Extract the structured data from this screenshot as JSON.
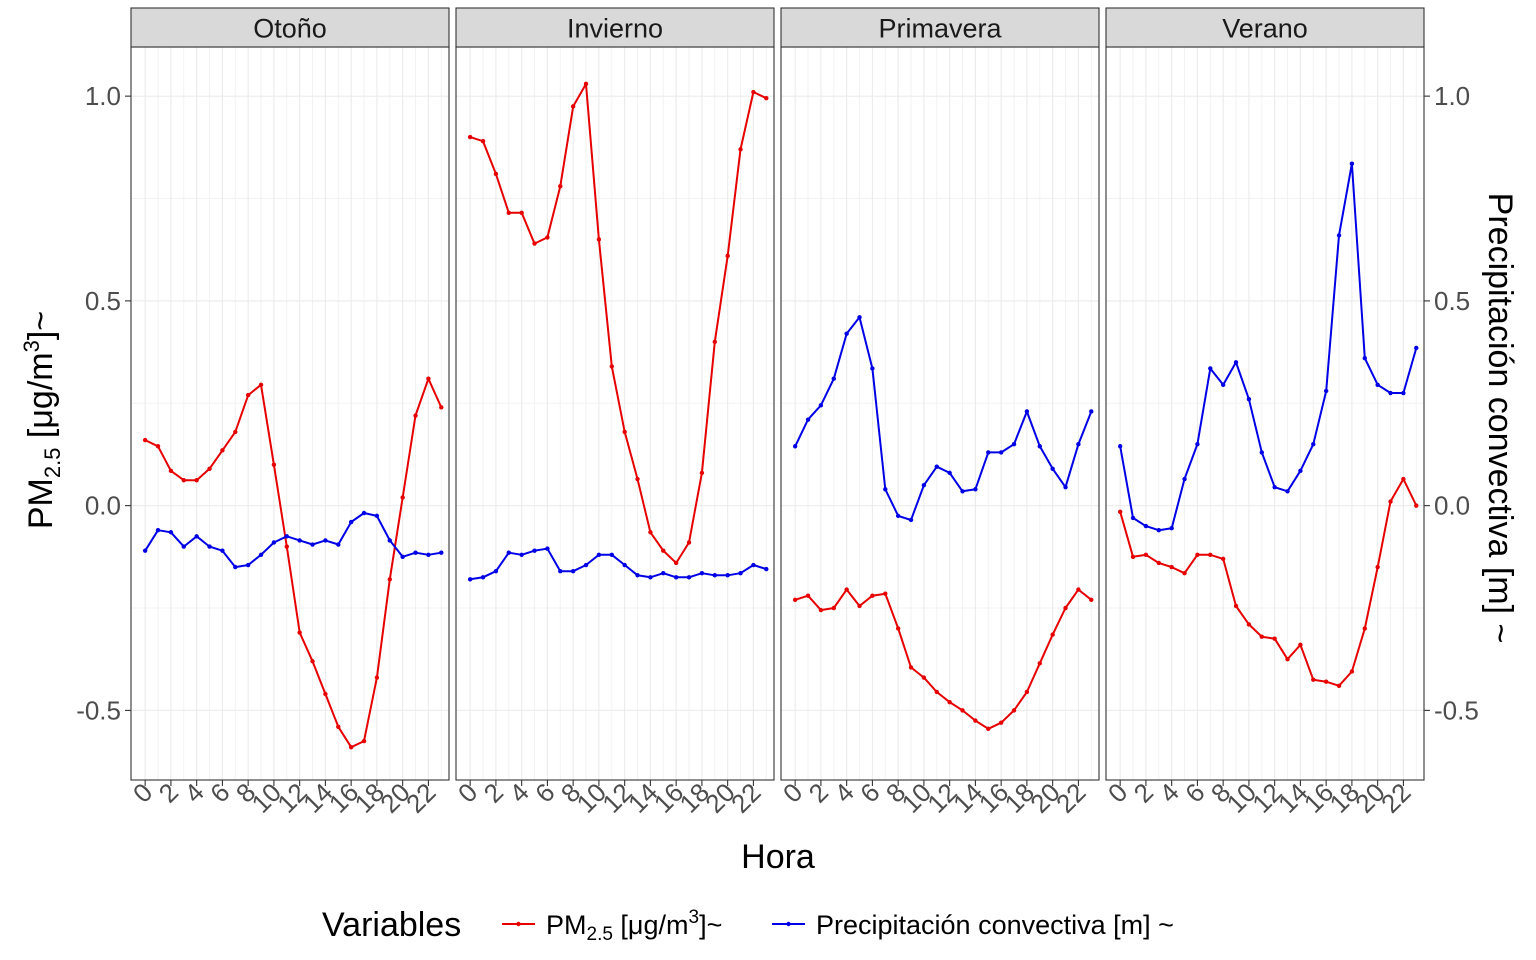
{
  "chart_data": {
    "type": "line",
    "xlabel": "Hora",
    "ylabel_left": {
      "base": "PM",
      "sub": "2.5",
      "mid": " [μg/m",
      "sup": "3",
      "end": "]~"
    },
    "ylabel_right": "Precipitación convectiva [m] ~",
    "ylim": [
      -0.67,
      1.12
    ],
    "y_ticks": [
      -0.5,
      0.0,
      0.5,
      1.0
    ],
    "y_tick_labels": [
      "-0.5",
      "0.0",
      "0.5",
      "1.0"
    ],
    "x_range": [
      -1.1,
      23.6
    ],
    "x_ticks": [
      0,
      2,
      4,
      6,
      8,
      10,
      12,
      14,
      16,
      18,
      20,
      22
    ],
    "x_tick_labels": [
      "0",
      "2",
      "4",
      "6",
      "8",
      "10",
      "12",
      "14",
      "16",
      "18",
      "20",
      "22"
    ],
    "grid": true,
    "legend": {
      "position": "bottom",
      "title": "Variables",
      "entries": [
        {
          "key": "pm",
          "color": "#e60000",
          "base": "PM",
          "sub": "2.5",
          "mid": " [μg/m",
          "sup": "3",
          "end": "]~"
        },
        {
          "key": "precip",
          "color": "#0000e6",
          "text": "Precipitación convectiva [m] ~"
        }
      ]
    },
    "hours": [
      0,
      1,
      2,
      3,
      4,
      5,
      6,
      7,
      8,
      9,
      10,
      11,
      12,
      13,
      14,
      15,
      16,
      17,
      18,
      19,
      20,
      21,
      22,
      23
    ],
    "panels": [
      {
        "title": "Otoño",
        "series": [
          {
            "name": "PM2.5",
            "color": "#e60000",
            "values": [
              0.16,
              0.145,
              0.085,
              0.062,
              0.062,
              0.09,
              0.135,
              0.18,
              0.27,
              0.295,
              0.1,
              -0.1,
              -0.31,
              -0.38,
              -0.46,
              -0.54,
              -0.59,
              -0.575,
              -0.42,
              -0.18,
              0.02,
              0.22,
              0.31,
              0.24
            ]
          },
          {
            "name": "Precipitación convectiva",
            "color": "#0000e6",
            "values": [
              -0.11,
              -0.06,
              -0.065,
              -0.1,
              -0.075,
              -0.1,
              -0.11,
              -0.15,
              -0.145,
              -0.12,
              -0.09,
              -0.075,
              -0.085,
              -0.095,
              -0.085,
              -0.095,
              -0.04,
              -0.018,
              -0.025,
              -0.085,
              -0.125,
              -0.115,
              -0.12,
              -0.115
            ]
          }
        ]
      },
      {
        "title": "Invierno",
        "series": [
          {
            "name": "PM2.5",
            "color": "#e60000",
            "values": [
              0.9,
              0.89,
              0.81,
              0.715,
              0.715,
              0.64,
              0.655,
              0.78,
              0.975,
              1.03,
              0.65,
              0.34,
              0.18,
              0.065,
              -0.065,
              -0.11,
              -0.14,
              -0.09,
              0.08,
              0.4,
              0.61,
              0.87,
              1.01,
              0.995
            ]
          },
          {
            "name": "Precipitación convectiva",
            "color": "#0000e6",
            "values": [
              -0.18,
              -0.175,
              -0.16,
              -0.115,
              -0.12,
              -0.11,
              -0.105,
              -0.16,
              -0.16,
              -0.145,
              -0.12,
              -0.12,
              -0.145,
              -0.17,
              -0.175,
              -0.165,
              -0.175,
              -0.175,
              -0.165,
              -0.17,
              -0.17,
              -0.165,
              -0.145,
              -0.155
            ]
          }
        ]
      },
      {
        "title": "Primavera",
        "series": [
          {
            "name": "PM2.5",
            "color": "#e60000",
            "values": [
              -0.23,
              -0.22,
              -0.255,
              -0.25,
              -0.205,
              -0.245,
              -0.22,
              -0.215,
              -0.3,
              -0.395,
              -0.42,
              -0.455,
              -0.48,
              -0.5,
              -0.525,
              -0.545,
              -0.53,
              -0.5,
              -0.455,
              -0.385,
              -0.315,
              -0.25,
              -0.205,
              -0.23
            ]
          },
          {
            "name": "Precipitación convectiva",
            "color": "#0000e6",
            "values": [
              0.145,
              0.21,
              0.245,
              0.31,
              0.42,
              0.46,
              0.335,
              0.04,
              -0.025,
              -0.035,
              0.05,
              0.095,
              0.08,
              0.035,
              0.04,
              0.13,
              0.13,
              0.15,
              0.23,
              0.145,
              0.09,
              0.045,
              0.15,
              0.23
            ]
          }
        ]
      },
      {
        "title": "Verano",
        "series": [
          {
            "name": "PM2.5",
            "color": "#e60000",
            "values": [
              -0.015,
              -0.125,
              -0.12,
              -0.14,
              -0.15,
              -0.165,
              -0.12,
              -0.12,
              -0.13,
              -0.245,
              -0.29,
              -0.32,
              -0.325,
              -0.375,
              -0.34,
              -0.425,
              -0.43,
              -0.44,
              -0.405,
              -0.3,
              -0.15,
              0.01,
              0.065,
              0.0
            ]
          },
          {
            "name": "Precipitación convectiva",
            "color": "#0000e6",
            "values": [
              0.145,
              -0.03,
              -0.05,
              -0.06,
              -0.055,
              0.065,
              0.15,
              0.335,
              0.295,
              0.35,
              0.26,
              0.13,
              0.045,
              0.035,
              0.085,
              0.15,
              0.28,
              0.66,
              0.835,
              0.36,
              0.295,
              0.275,
              0.275,
              0.385
            ]
          }
        ]
      }
    ]
  }
}
